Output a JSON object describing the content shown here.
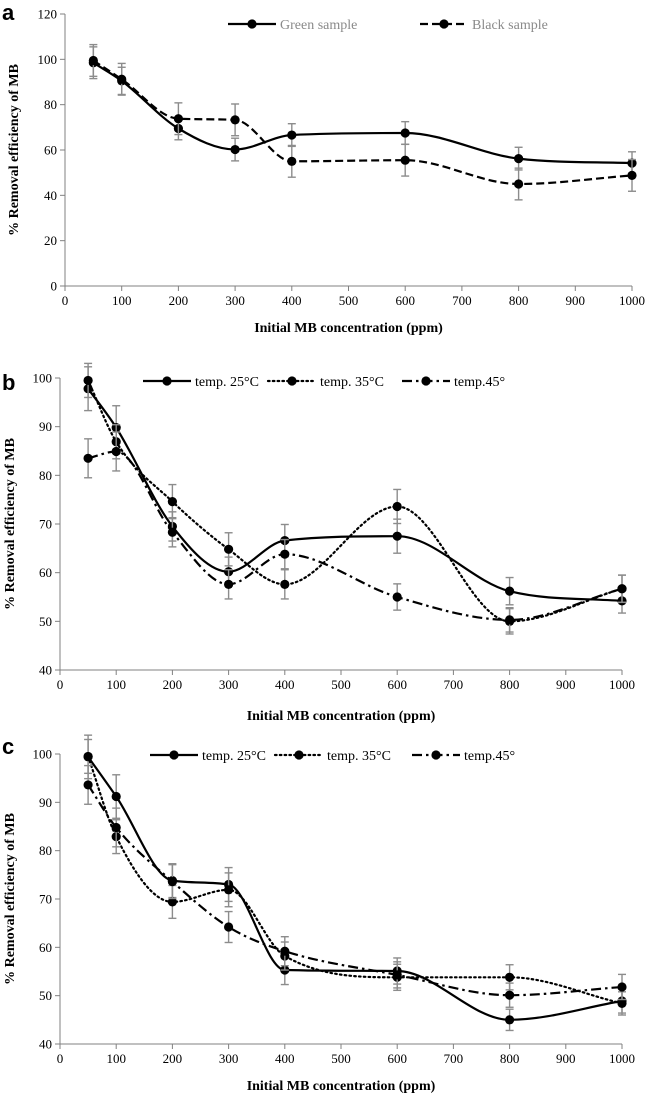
{
  "chart_data": [
    {
      "panel": "a",
      "type": "line",
      "title": "",
      "xlabel": "Initial MB concentration (ppm)",
      "ylabel": "% Removal efficiency of MB",
      "xlim": [
        0,
        1000
      ],
      "ylim": [
        0,
        120
      ],
      "xticks": [
        0,
        100,
        200,
        300,
        400,
        500,
        600,
        700,
        800,
        900,
        1000
      ],
      "yticks": [
        0,
        20,
        40,
        60,
        80,
        100,
        120
      ],
      "legend_position": "top-center",
      "x": [
        50,
        100,
        200,
        300,
        400,
        600,
        800,
        1000
      ],
      "series": [
        {
          "name": "Green sample",
          "dash": "solid",
          "values": [
            98.5,
            90.5,
            69.5,
            60.2,
            66.6,
            67.5,
            56.2,
            54.2
          ],
          "errors": [
            7,
            6,
            5,
            5,
            5,
            5,
            5,
            5
          ]
        },
        {
          "name": "Black sample",
          "dash": "dash",
          "values": [
            99.5,
            91.2,
            73.8,
            73.3,
            55.0,
            55.5,
            45.0,
            48.8
          ],
          "errors": [
            7,
            7,
            7,
            7,
            7,
            7,
            7,
            7
          ]
        }
      ]
    },
    {
      "panel": "b",
      "type": "line",
      "title": "",
      "xlabel": "Initial MB concentration (ppm)",
      "ylabel": "% Removal efficiency of MB",
      "xlim": [
        0,
        1000
      ],
      "ylim": [
        40,
        100
      ],
      "xticks": [
        0,
        100,
        200,
        300,
        400,
        500,
        600,
        700,
        800,
        900,
        1000
      ],
      "yticks": [
        40,
        50,
        60,
        70,
        80,
        90,
        100
      ],
      "legend_position": "top-center",
      "x": [
        50,
        100,
        200,
        300,
        400,
        600,
        800,
        1000
      ],
      "series": [
        {
          "name": "temp. 25°C",
          "dash": "solid",
          "values": [
            97.8,
            89.8,
            69.5,
            60.2,
            66.6,
            67.5,
            56.2,
            54.2
          ],
          "errors": [
            4.5,
            4.5,
            3,
            3,
            3.3,
            3.5,
            2.8,
            2.5
          ]
        },
        {
          "name": "temp. 35°C",
          "dash": "dot",
          "values": [
            99.5,
            86.9,
            74.6,
            64.8,
            57.6,
            73.6,
            50.0,
            56.7
          ],
          "errors": [
            3.5,
            3.5,
            3.5,
            3.4,
            3,
            3.5,
            2.6,
            2.8
          ]
        },
        {
          "name": "temp.45°",
          "dash": "dashdot",
          "values": [
            83.5,
            84.9,
            68.3,
            57.6,
            63.8,
            55.0,
            50.3,
            56.7
          ],
          "errors": [
            4,
            4,
            3,
            3,
            3,
            2.7,
            2.5,
            2.8
          ]
        }
      ]
    },
    {
      "panel": "c",
      "type": "line",
      "title": "",
      "xlabel": "Initial MB concentration (ppm)",
      "ylabel": "% Removal efficiency of MB",
      "xlim": [
        0,
        1000
      ],
      "ylim": [
        40,
        100
      ],
      "xticks": [
        0,
        100,
        200,
        300,
        400,
        500,
        600,
        700,
        800,
        900,
        1000
      ],
      "yticks": [
        40,
        50,
        60,
        70,
        80,
        90,
        100
      ],
      "legend_position": "top-center",
      "x": [
        50,
        100,
        200,
        300,
        400,
        600,
        800,
        1000
      ],
      "series": [
        {
          "name": "temp. 25°C",
          "dash": "solid",
          "values": [
            99.4,
            91.2,
            73.8,
            73.0,
            55.3,
            55.1,
            45.0,
            48.9
          ],
          "errors": [
            4.5,
            4.5,
            3.5,
            3.5,
            3,
            2.7,
            2.2,
            2.5
          ]
        },
        {
          "name": "temp. 35°C",
          "dash": "dot",
          "values": [
            99.5,
            82.9,
            69.4,
            71.9,
            58.2,
            53.8,
            53.8,
            48.4
          ],
          "errors": [
            3.5,
            3.5,
            3.4,
            3.5,
            2.9,
            2.7,
            2.6,
            2.4
          ]
        },
        {
          "name": "temp.45°",
          "dash": "dashdot",
          "values": [
            93.6,
            84.8,
            73.6,
            64.2,
            59.2,
            54.3,
            50.1,
            51.8
          ],
          "errors": [
            4,
            4,
            3.5,
            3.2,
            3,
            2.7,
            2.5,
            2.6
          ]
        }
      ]
    }
  ]
}
